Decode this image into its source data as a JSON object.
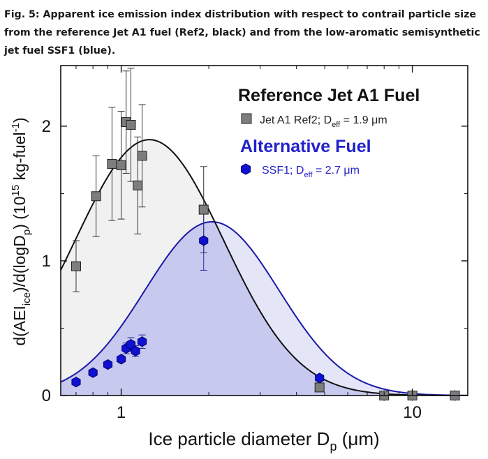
{
  "caption": {
    "lines": [
      "Fig. 5: Apparent ice emission index distribution with respect to contrail particle size",
      "from the reference Jet A1 fuel (Ref2, black) and from the low-aromatic semisynthetic",
      "jet fuel SSF1 (blue)."
    ]
  },
  "chart_data": {
    "type": "scatter",
    "xscale": "log",
    "xlim": [
      0.62,
      15.5
    ],
    "ylim": [
      0,
      2.45
    ],
    "xticks": [
      {
        "value": 1,
        "label": "1"
      },
      {
        "value": 10,
        "label": "10"
      }
    ],
    "yticks": [
      {
        "value": 0,
        "label": "0"
      },
      {
        "value": 1,
        "label": "1"
      },
      {
        "value": 2,
        "label": "2"
      }
    ],
    "xlabel": {
      "main": "Ice particle diameter D",
      "sub": "p",
      "unit": " (μm)"
    },
    "ylabel": {
      "a": "d(AEI",
      "b": "ice",
      "c": ")/d(logD",
      "d": "p",
      "e": ") (10",
      "f": "15",
      "g": " kg-fuel",
      "h": "-1",
      "i": ")"
    },
    "legend": {
      "ref_heading": "Reference Jet A1 Fuel",
      "ref_entry": {
        "pre": "Jet A1 Ref2; D",
        "sub": "eff",
        "post": " = 1.9 μm"
      },
      "alt_heading": "Alternative Fuel",
      "alt_entry": {
        "pre": "SSF1; D",
        "sub": "eff",
        "post": " = 2.7 μm"
      }
    },
    "colors": {
      "ref_marker": "#7d7d7d",
      "ref_curve": "#111111",
      "ref_fill": "#f1f1f1",
      "alt_marker": "#1010d0",
      "alt_curve": "#1a1aa6",
      "alt_fill": "#c7c9ee",
      "alt_fill_light": "#e4e6f8"
    },
    "series": [
      {
        "name": "Jet A1 Ref2",
        "points": [
          {
            "x": 0.7,
            "y": 0.96,
            "err": 0.19
          },
          {
            "x": 0.82,
            "y": 1.48,
            "err": 0.3
          },
          {
            "x": 0.93,
            "y": 1.72,
            "err": 0.42
          },
          {
            "x": 1.0,
            "y": 1.71,
            "err": 0.4
          },
          {
            "x": 1.04,
            "y": 2.03,
            "err": 0.38
          },
          {
            "x": 1.08,
            "y": 2.01,
            "err": 0.42
          },
          {
            "x": 1.14,
            "y": 1.56,
            "err": 0.36
          },
          {
            "x": 1.18,
            "y": 1.78,
            "err": 0.38
          },
          {
            "x": 1.92,
            "y": 1.38,
            "err": 0.32
          },
          {
            "x": 4.8,
            "y": 0.06,
            "err": 0
          },
          {
            "x": 8.0,
            "y": 0.0,
            "err": 0
          },
          {
            "x": 10.0,
            "y": 0.0,
            "err": 0
          },
          {
            "x": 14.0,
            "y": 0.0,
            "err": 0
          }
        ],
        "fit": {
          "peak_x": 1.25,
          "peak_y": 1.9,
          "sigma_log10": 0.255
        }
      },
      {
        "name": "SSF1",
        "points": [
          {
            "x": 0.7,
            "y": 0.1,
            "err": 0
          },
          {
            "x": 0.8,
            "y": 0.17,
            "err": 0
          },
          {
            "x": 0.9,
            "y": 0.23,
            "err": 0
          },
          {
            "x": 1.0,
            "y": 0.27,
            "err": 0
          },
          {
            "x": 1.04,
            "y": 0.35,
            "err": 0.04
          },
          {
            "x": 1.08,
            "y": 0.38,
            "err": 0.05
          },
          {
            "x": 1.12,
            "y": 0.33,
            "err": 0.04
          },
          {
            "x": 1.18,
            "y": 0.4,
            "err": 0.05
          },
          {
            "x": 1.92,
            "y": 1.15,
            "err": 0.22
          },
          {
            "x": 4.8,
            "y": 0.13,
            "err": 0
          },
          {
            "x": 8.0,
            "y": 0.0,
            "err": 0
          },
          {
            "x": 10.0,
            "y": 0.0,
            "err": 0
          },
          {
            "x": 14.0,
            "y": 0.0,
            "err": 0
          }
        ],
        "fit": {
          "peak_x": 2.05,
          "peak_y": 1.29,
          "sigma_log10": 0.23
        }
      }
    ]
  }
}
